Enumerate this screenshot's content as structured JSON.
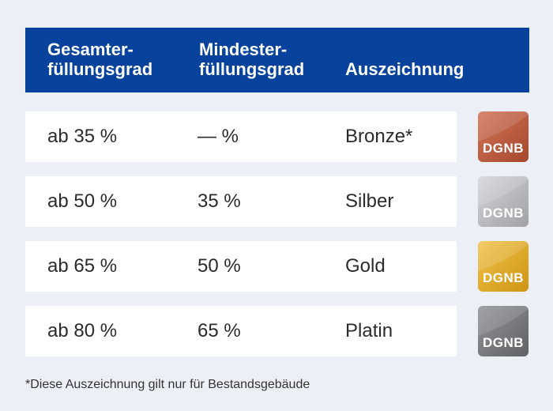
{
  "header": {
    "col1": "Gesamter-\nfüllungsgrad",
    "col2": "Mindester-\nfüllungsgrad",
    "col3": "Auszeichnung"
  },
  "rows": [
    {
      "total": "ab 35 %",
      "minimum": "— %",
      "award": "Bronze*",
      "badge_label": "DGNB"
    },
    {
      "total": "ab 50 %",
      "minimum": "35 %",
      "award": "Silber",
      "badge_label": "DGNB"
    },
    {
      "total": "ab 65 %",
      "minimum": "50 %",
      "award": "Gold",
      "badge_label": "DGNB"
    },
    {
      "total": "ab 80 %",
      "minimum": "65 %",
      "award": "Platin",
      "badge_label": "DGNB"
    }
  ],
  "footnote": "*Diese Auszeichnung gilt nur für Bestandsgebäude",
  "colors": {
    "header_bg": "#07439c",
    "bronze": [
      "#c8684a",
      "#a84a30"
    ],
    "silver": [
      "#c6c8cb",
      "#a3a5a9"
    ],
    "gold": [
      "#e9b93c",
      "#d29a18"
    ],
    "platinum": [
      "#8a8c90",
      "#66686c"
    ]
  }
}
